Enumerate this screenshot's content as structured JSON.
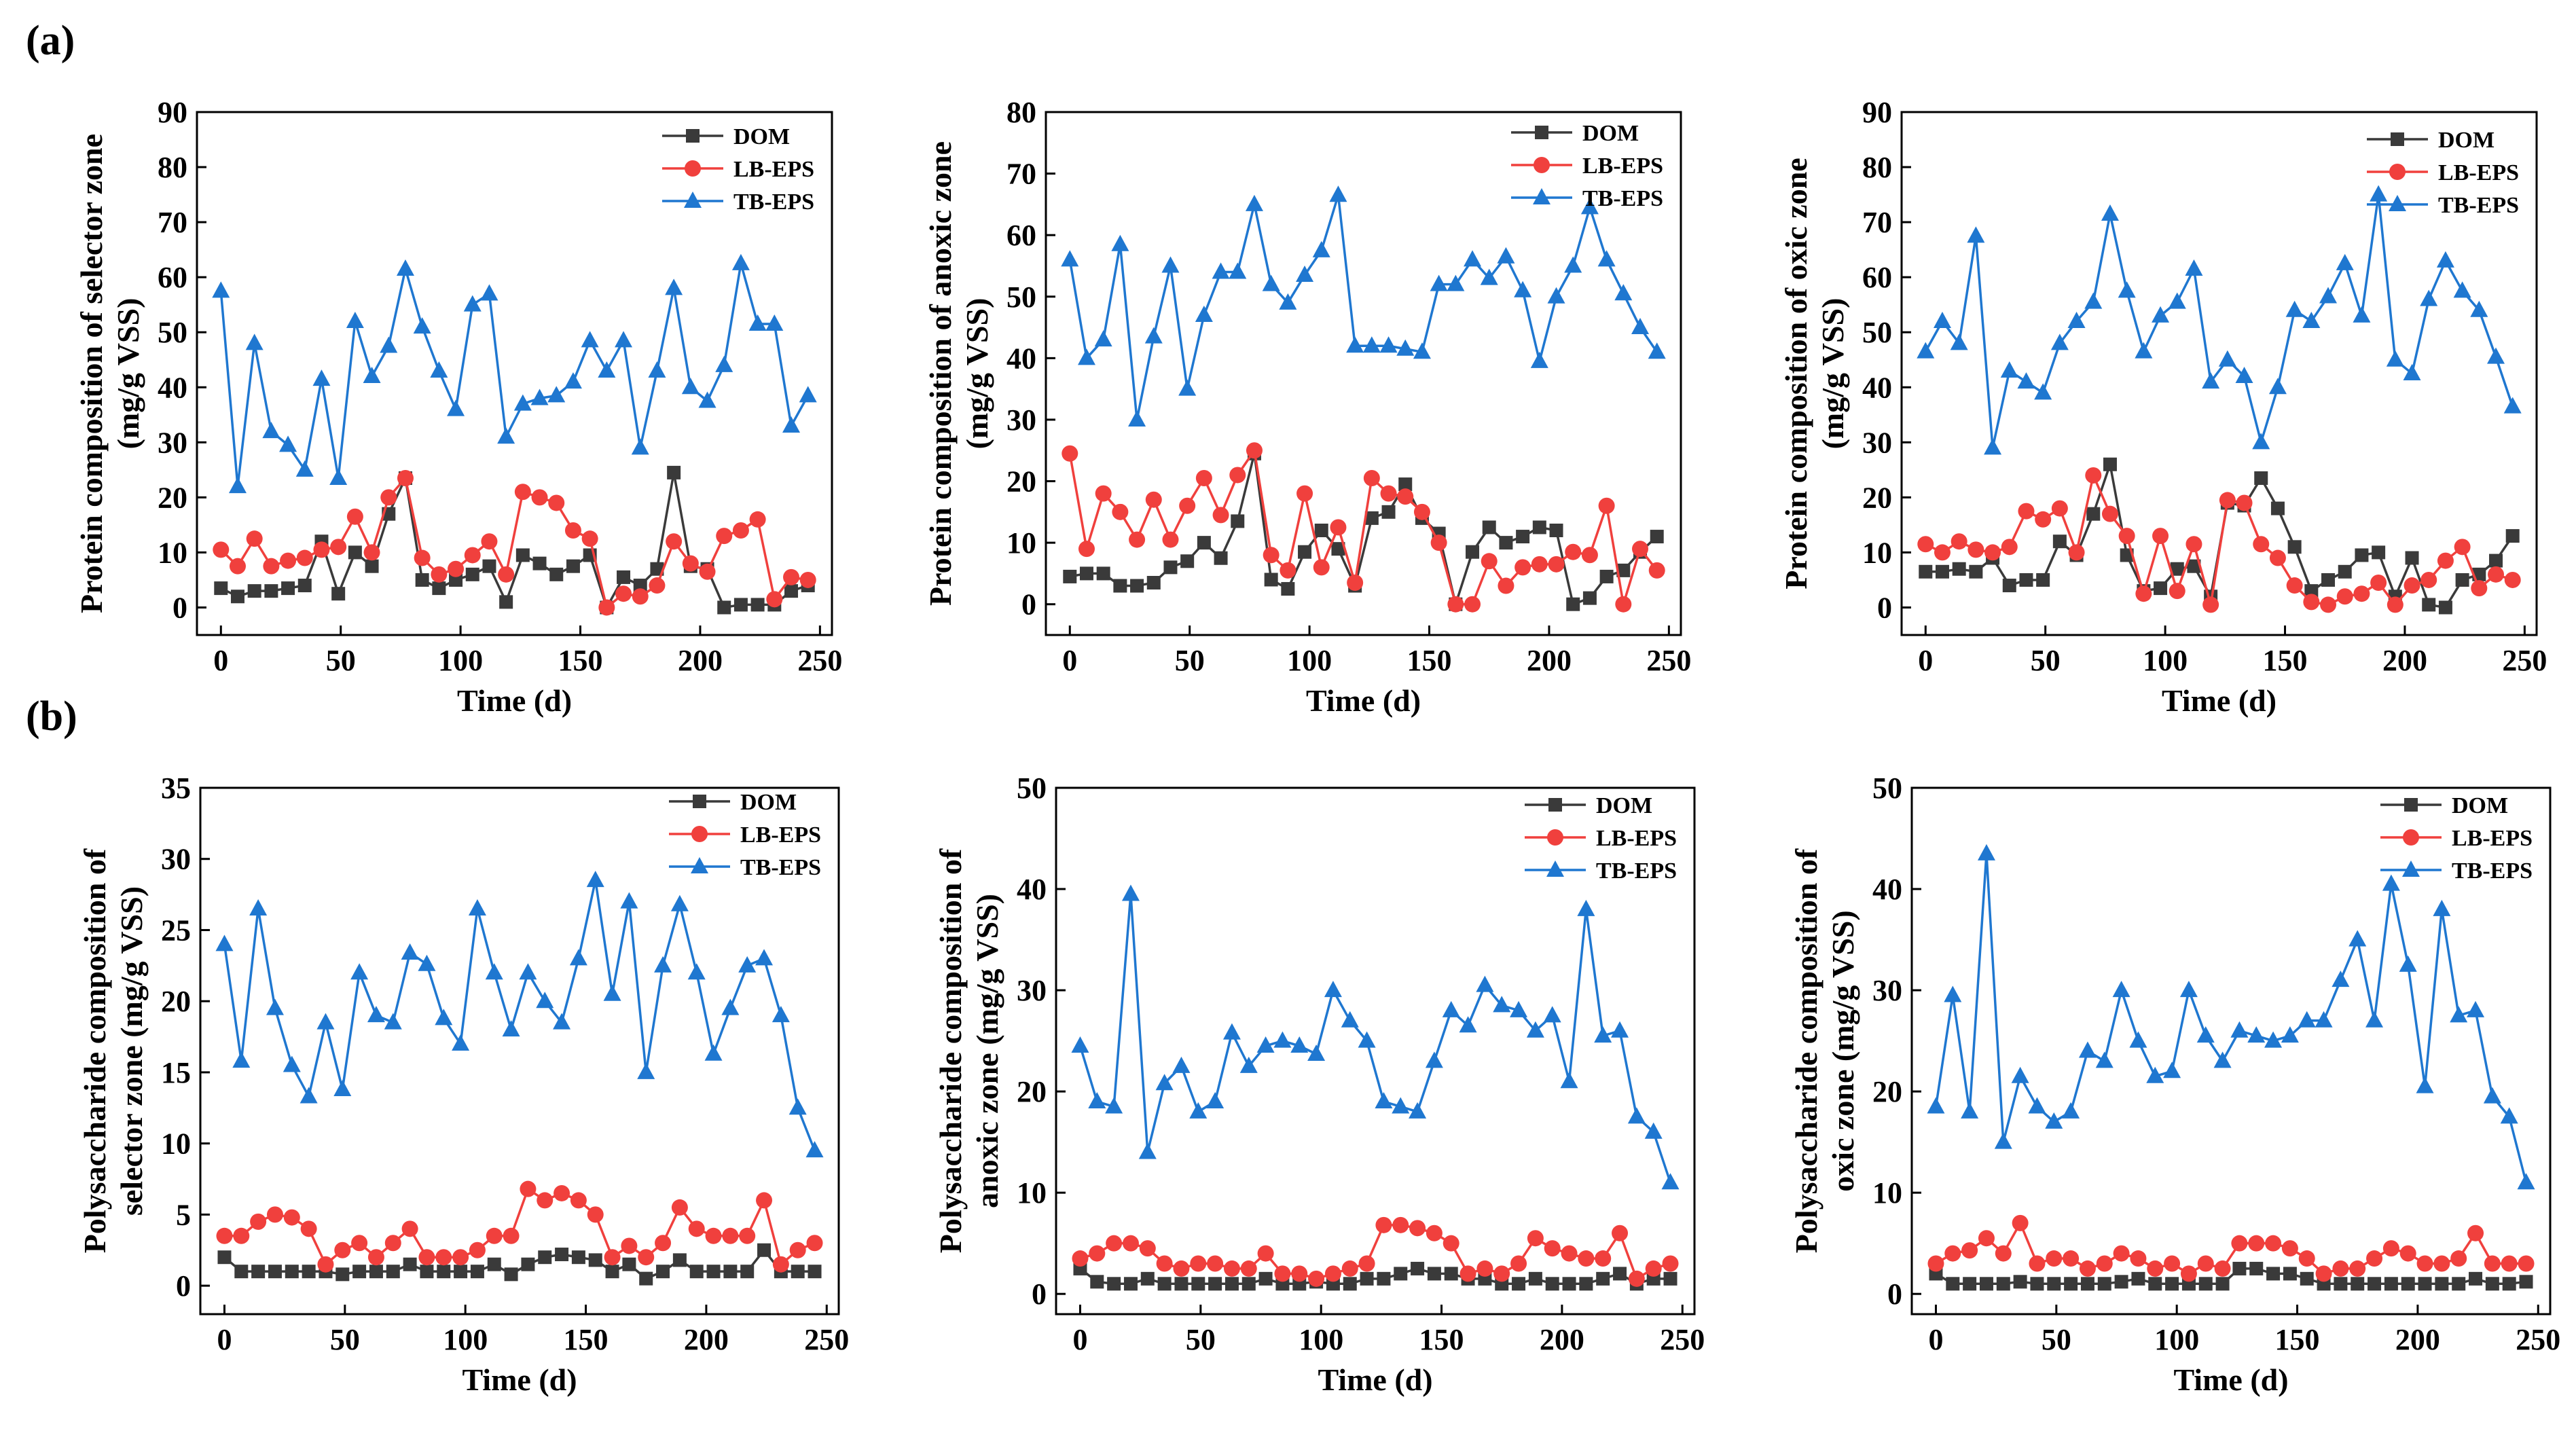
{
  "figure": {
    "panel_labels": {
      "a": "(a)",
      "b": "(b)"
    },
    "colors": {
      "DOM": "#3a3a3a",
      "LB-EPS": "#f0403d",
      "TB-EPS": "#1f77d0"
    }
  },
  "chart_data": [
    {
      "id": "a1",
      "type": "line",
      "title": "",
      "xlabel": "Time (d)",
      "ylabel_lines": [
        "Protein composition of selector zone",
        "(mg/g VSS)"
      ],
      "xlim": [
        -10,
        255
      ],
      "ylim": [
        -5,
        90
      ],
      "xticks": [
        0,
        50,
        100,
        150,
        200,
        250
      ],
      "yticks": [
        0,
        10,
        20,
        30,
        40,
        50,
        60,
        70,
        80,
        90
      ],
      "x": [
        0,
        7,
        14,
        21,
        28,
        35,
        42,
        49,
        56,
        63,
        70,
        77,
        84,
        91,
        98,
        105,
        112,
        119,
        126,
        133,
        140,
        147,
        154,
        161,
        168,
        175,
        182,
        189,
        196,
        203,
        210,
        217,
        224,
        231,
        238,
        245
      ],
      "series": [
        {
          "name": "DOM",
          "marker": "square",
          "values": [
            3.5,
            2,
            3,
            3,
            3.5,
            4,
            12,
            2.5,
            10,
            7.5,
            17,
            23.5,
            5,
            3.5,
            5,
            6,
            7.5,
            1,
            9.5,
            8,
            6,
            7.5,
            9.5,
            0,
            5.5,
            4,
            7,
            24.5,
            7.5,
            7,
            0,
            0.5,
            0.5,
            0.5,
            3,
            4
          ]
        },
        {
          "name": "LB-EPS",
          "marker": "circle",
          "values": [
            10.5,
            7.5,
            12.5,
            7.5,
            8.5,
            9,
            10.5,
            11,
            16.5,
            10,
            20,
            23.5,
            9,
            6,
            7,
            9.5,
            12,
            6,
            21,
            20,
            19,
            14,
            12.5,
            0,
            2.5,
            2,
            4,
            12,
            8,
            6.5,
            13,
            14,
            16,
            1.5,
            5.5,
            5
          ]
        },
        {
          "name": "TB-EPS",
          "marker": "triangle",
          "values": [
            57.5,
            22,
            48,
            32,
            29.5,
            25,
            41.5,
            23.5,
            52,
            42,
            47.5,
            61.5,
            51,
            43,
            36,
            55,
            57,
            31,
            37,
            38,
            38.5,
            41,
            48.5,
            43,
            48.5,
            29,
            43,
            58,
            40,
            37.5,
            44,
            62.5,
            51.5,
            51.5,
            33,
            38.5
          ]
        }
      ]
    },
    {
      "id": "a2",
      "type": "line",
      "title": "",
      "xlabel": "Time (d)",
      "ylabel_lines": [
        "Protein composition of anoxic zone",
        "(mg/g VSS)"
      ],
      "xlim": [
        -10,
        255
      ],
      "ylim": [
        -5,
        80
      ],
      "xticks": [
        0,
        50,
        100,
        150,
        200,
        250
      ],
      "yticks": [
        0,
        10,
        20,
        30,
        40,
        50,
        60,
        70,
        80
      ],
      "x": [
        0,
        7,
        14,
        21,
        28,
        35,
        42,
        49,
        56,
        63,
        70,
        77,
        84,
        91,
        98,
        105,
        112,
        119,
        126,
        133,
        140,
        147,
        154,
        161,
        168,
        175,
        182,
        189,
        196,
        203,
        210,
        217,
        224,
        231,
        238,
        245
      ],
      "series": [
        {
          "name": "DOM",
          "marker": "square",
          "values": [
            4.5,
            5,
            5,
            3,
            3,
            3.5,
            6,
            7,
            10,
            7.5,
            13.5,
            24.5,
            4,
            2.5,
            8.5,
            12,
            9,
            3,
            14,
            15,
            19.5,
            14,
            11.5,
            0,
            8.5,
            12.5,
            10,
            11,
            12.5,
            12,
            0,
            1,
            4.5,
            5.5,
            8.5,
            11
          ]
        },
        {
          "name": "LB-EPS",
          "marker": "circle",
          "values": [
            24.5,
            9,
            18,
            15,
            10.5,
            17,
            10.5,
            16,
            20.5,
            14.5,
            21,
            25,
            8,
            5.5,
            18,
            6,
            12.5,
            3.5,
            20.5,
            18,
            17.5,
            15,
            10,
            0,
            0,
            7,
            3,
            6,
            6.5,
            6.5,
            8.5,
            8,
            16,
            0,
            9,
            5.5
          ]
        },
        {
          "name": "TB-EPS",
          "marker": "triangle",
          "values": [
            56,
            40,
            43,
            58.5,
            30,
            43.5,
            55,
            35,
            47,
            54,
            54,
            65,
            52,
            49,
            53.5,
            57.5,
            66.5,
            42,
            42,
            42,
            41.5,
            41,
            52,
            52,
            56,
            53,
            56.5,
            51,
            39.5,
            50,
            55,
            64.5,
            56,
            50.5,
            45,
            41
          ]
        }
      ]
    },
    {
      "id": "a3",
      "type": "line",
      "title": "",
      "xlabel": "Time (d)",
      "ylabel_lines": [
        "Protein composition of oxic zone",
        "(mg/g VSS)"
      ],
      "xlim": [
        -10,
        255
      ],
      "ylim": [
        -5,
        90
      ],
      "xticks": [
        0,
        50,
        100,
        150,
        200,
        250
      ],
      "yticks": [
        0,
        10,
        20,
        30,
        40,
        50,
        60,
        70,
        80,
        90
      ],
      "x": [
        0,
        7,
        14,
        21,
        28,
        35,
        42,
        49,
        56,
        63,
        70,
        77,
        84,
        91,
        98,
        105,
        112,
        119,
        126,
        133,
        140,
        147,
        154,
        161,
        168,
        175,
        182,
        189,
        196,
        203,
        210,
        217,
        224,
        231,
        238,
        245
      ],
      "series": [
        {
          "name": "DOM",
          "marker": "square",
          "values": [
            6.5,
            6.5,
            7,
            6.5,
            9,
            4,
            5,
            5,
            12,
            9.5,
            17,
            26,
            9.5,
            3,
            3.5,
            7,
            7.5,
            2,
            19,
            18.5,
            23.5,
            18,
            11,
            3,
            5,
            6.5,
            9.5,
            10,
            2,
            9,
            0.5,
            0,
            5,
            6,
            8.5,
            13
          ]
        },
        {
          "name": "LB-EPS",
          "marker": "circle",
          "values": [
            11.5,
            10,
            12,
            10.5,
            10,
            11,
            17.5,
            16,
            18,
            10,
            24,
            17,
            13,
            2.5,
            13,
            3,
            11.5,
            0.5,
            19.5,
            19,
            11.5,
            9,
            4,
            1,
            0.5,
            2,
            2.5,
            4.5,
            0.5,
            4,
            5,
            8.5,
            11,
            3.5,
            6,
            5
          ]
        },
        {
          "name": "TB-EPS",
          "marker": "triangle",
          "values": [
            46.5,
            52,
            48,
            67.5,
            29,
            43,
            41,
            39,
            48,
            52,
            55.5,
            71.5,
            57.5,
            46.5,
            53,
            55.5,
            61.5,
            41,
            45,
            42,
            30,
            40,
            54,
            52,
            56.5,
            62.5,
            53,
            75,
            45,
            42.5,
            56,
            63,
            57.5,
            54,
            45.5,
            36.5
          ]
        }
      ]
    },
    {
      "id": "b1",
      "type": "line",
      "title": "",
      "xlabel": "Time (d)",
      "ylabel_lines": [
        "Polysaccharide composition of",
        "selector zone (mg/g VSS)"
      ],
      "xlim": [
        -10,
        255
      ],
      "ylim": [
        -2,
        35
      ],
      "xticks": [
        0,
        50,
        100,
        150,
        200,
        250
      ],
      "yticks": [
        0,
        5,
        10,
        15,
        20,
        25,
        30,
        35
      ],
      "x": [
        0,
        7,
        14,
        21,
        28,
        35,
        42,
        49,
        56,
        63,
        70,
        77,
        84,
        91,
        98,
        105,
        112,
        119,
        126,
        133,
        140,
        147,
        154,
        161,
        168,
        175,
        182,
        189,
        196,
        203,
        210,
        217,
        224,
        231,
        238,
        245
      ],
      "series": [
        {
          "name": "DOM",
          "marker": "square",
          "values": [
            2,
            1,
            1,
            1,
            1,
            1,
            1,
            0.8,
            1,
            1,
            1,
            1.5,
            1,
            1,
            1,
            1,
            1.5,
            0.8,
            1.5,
            2,
            2.2,
            2,
            1.8,
            1,
            1.5,
            0.5,
            1,
            1.8,
            1,
            1,
            1,
            1,
            2.5,
            1,
            1,
            1
          ]
        },
        {
          "name": "LB-EPS",
          "marker": "circle",
          "values": [
            3.5,
            3.5,
            4.5,
            5,
            4.8,
            4,
            1.5,
            2.5,
            3,
            2,
            3,
            4,
            2,
            2,
            2,
            2.5,
            3.5,
            3.5,
            6.8,
            6,
            6.5,
            6,
            5,
            2,
            2.8,
            2,
            3,
            5.5,
            4,
            3.5,
            3.5,
            3.5,
            6,
            1.5,
            2.5,
            3
          ]
        },
        {
          "name": "TB-EPS",
          "marker": "triangle",
          "values": [
            24,
            15.8,
            26.5,
            19.5,
            15.5,
            13.3,
            18.5,
            13.8,
            22,
            19,
            18.5,
            23.4,
            22.6,
            18.8,
            17,
            26.5,
            22,
            18,
            22,
            20,
            18.5,
            23,
            28.5,
            20.5,
            27,
            15,
            22.5,
            26.8,
            22,
            16.3,
            19.5,
            22.5,
            23,
            19,
            12.5,
            9.5
          ]
        }
      ]
    },
    {
      "id": "b2",
      "type": "line",
      "title": "",
      "xlabel": "Time (d)",
      "ylabel_lines": [
        "Polysaccharide composition of",
        "anoxic zone (mg/g VSS)"
      ],
      "xlim": [
        -10,
        255
      ],
      "ylim": [
        -2,
        50
      ],
      "xticks": [
        0,
        50,
        100,
        150,
        200,
        250
      ],
      "yticks": [
        0,
        10,
        20,
        30,
        40,
        50
      ],
      "x": [
        0,
        7,
        14,
        21,
        28,
        35,
        42,
        49,
        56,
        63,
        70,
        77,
        84,
        91,
        98,
        105,
        112,
        119,
        126,
        133,
        140,
        147,
        154,
        161,
        168,
        175,
        182,
        189,
        196,
        203,
        210,
        217,
        224,
        231,
        238,
        245
      ],
      "series": [
        {
          "name": "DOM",
          "marker": "square",
          "values": [
            2.5,
            1.2,
            1,
            1,
            1.5,
            1,
            1,
            1,
            1,
            1,
            1,
            1.5,
            1,
            1,
            1.2,
            1,
            1,
            1.5,
            1.5,
            2,
            2.5,
            2,
            2,
            1.5,
            1.5,
            1,
            1,
            1.5,
            1,
            1,
            1,
            1.5,
            2,
            1,
            1.5,
            1.5
          ]
        },
        {
          "name": "LB-EPS",
          "marker": "circle",
          "values": [
            3.5,
            4,
            5,
            5,
            4.5,
            3,
            2.5,
            3,
            3,
            2.5,
            2.5,
            4,
            2,
            2,
            1.5,
            2,
            2.5,
            3,
            6.8,
            6.8,
            6.5,
            6,
            5,
            2,
            2.5,
            2,
            3,
            5.5,
            4.5,
            4,
            3.5,
            3.5,
            6,
            1.5,
            2.5,
            3
          ]
        },
        {
          "name": "TB-EPS",
          "marker": "triangle",
          "values": [
            24.5,
            19,
            18.5,
            39.5,
            14,
            20.8,
            22.5,
            18,
            19,
            25.8,
            22.5,
            24.5,
            25,
            24.5,
            23.7,
            30,
            27,
            25,
            19,
            18.5,
            18,
            23,
            28,
            26.5,
            30.5,
            28.5,
            28,
            26,
            27.5,
            21,
            38,
            25.5,
            26,
            17.5,
            16,
            11
          ]
        }
      ]
    },
    {
      "id": "b3",
      "type": "line",
      "title": "",
      "xlabel": "Time (d)",
      "ylabel_lines": [
        "Polysaccharide composition of",
        "oxic zone (mg/g VSS)"
      ],
      "xlim": [
        -10,
        255
      ],
      "ylim": [
        -2,
        50
      ],
      "xticks": [
        0,
        50,
        100,
        150,
        200,
        250
      ],
      "yticks": [
        0,
        10,
        20,
        30,
        40,
        50
      ],
      "x": [
        0,
        7,
        14,
        21,
        28,
        35,
        42,
        49,
        56,
        63,
        70,
        77,
        84,
        91,
        98,
        105,
        112,
        119,
        126,
        133,
        140,
        147,
        154,
        161,
        168,
        175,
        182,
        189,
        196,
        203,
        210,
        217,
        224,
        231,
        238,
        245
      ],
      "series": [
        {
          "name": "DOM",
          "marker": "square",
          "values": [
            2,
            1,
            1,
            1,
            1,
            1.2,
            1,
            1,
            1,
            1,
            1,
            1.2,
            1.5,
            1,
            1,
            1,
            1,
            1,
            2.5,
            2.5,
            2,
            2,
            1.5,
            1,
            1,
            1,
            1,
            1,
            1,
            1,
            1,
            1,
            1.5,
            1,
            1,
            1.2
          ]
        },
        {
          "name": "LB-EPS",
          "marker": "circle",
          "values": [
            3,
            4,
            4.3,
            5.5,
            4,
            7,
            3,
            3.5,
            3.5,
            2.5,
            3,
            4,
            3.5,
            2.5,
            3,
            2,
            3,
            2.5,
            5,
            5,
            5,
            4.5,
            3.5,
            2,
            2.5,
            2.5,
            3.5,
            4.5,
            4,
            3,
            3,
            3.5,
            6,
            3,
            3,
            3
          ]
        },
        {
          "name": "TB-EPS",
          "marker": "triangle",
          "values": [
            18.5,
            29.5,
            18,
            43.5,
            15,
            21.5,
            18.5,
            17,
            18,
            24,
            23,
            30,
            25,
            21.5,
            22,
            30,
            25.5,
            23,
            26,
            25.5,
            25,
            25.5,
            27,
            27,
            31,
            35,
            27,
            40.5,
            32.5,
            20.5,
            38,
            27.5,
            28,
            19.5,
            17.5,
            11
          ]
        }
      ]
    }
  ]
}
